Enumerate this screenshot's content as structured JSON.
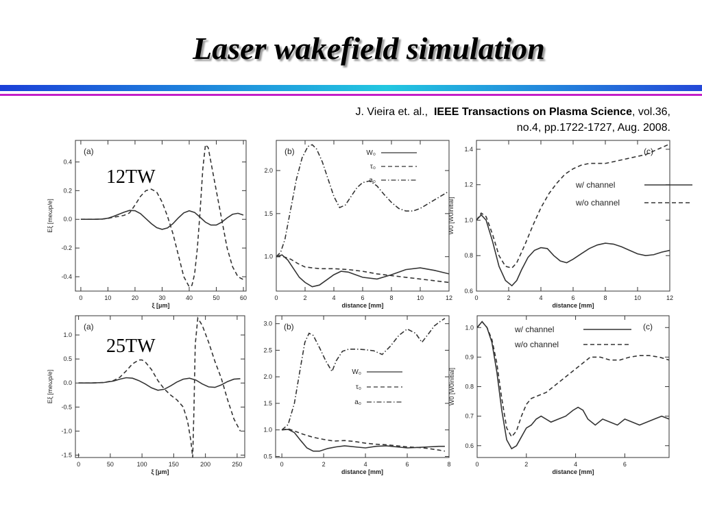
{
  "slide": {
    "title": "Laser wakefield simulation",
    "rule_colors": {
      "band_start": "#1b3fd8",
      "band_mid": "#22c7e0",
      "band_end": "#2448d8",
      "thin": "#c31ec8"
    },
    "citation": {
      "authors": "J. Vieira et. al.,",
      "journal": "IEEE Transactions on Plasma Science",
      "details": ", vol.36, no.4, pp.1722-1727, Aug. 2008."
    }
  },
  "chart_data": [
    {
      "panel": "(a)",
      "type": "line",
      "row_label": "12TW",
      "xlabel": "ξ [μm]",
      "ylabel": "Eξ [meωp/e]",
      "xlim": [
        -2,
        61
      ],
      "ylim": [
        -0.5,
        0.55
      ],
      "xticks": [
        0,
        10,
        20,
        30,
        40,
        50,
        60
      ],
      "yticks": [
        -0.4,
        -0.2,
        0.0,
        0.2,
        0.4
      ],
      "ytick_labels": [
        "-0.4",
        "-0.2",
        "0.0",
        "0.2",
        "0.4"
      ],
      "series": [
        {
          "style": "solid",
          "x": [
            0,
            5,
            8,
            10,
            12,
            14,
            16,
            18,
            20,
            22,
            24,
            26,
            28,
            30,
            32,
            34,
            36,
            38,
            40,
            42,
            44,
            46,
            48,
            50,
            52,
            54,
            56,
            58,
            60
          ],
          "y": [
            0,
            0,
            0.002,
            0.008,
            0.02,
            0.035,
            0.05,
            0.062,
            0.06,
            0.04,
            0.005,
            -0.03,
            -0.058,
            -0.07,
            -0.06,
            -0.03,
            0.01,
            0.045,
            0.06,
            0.048,
            0.015,
            -0.02,
            -0.04,
            -0.04,
            -0.02,
            0.01,
            0.035,
            0.042,
            0.03
          ]
        },
        {
          "style": "dashed",
          "x": [
            0,
            5,
            8,
            10,
            12,
            14,
            16,
            18,
            20,
            22,
            24,
            26,
            28,
            30,
            32,
            34,
            36,
            38,
            40,
            41,
            42,
            43,
            44,
            45,
            46,
            47,
            48,
            50,
            52,
            54,
            56,
            58,
            60
          ],
          "y": [
            0,
            0,
            0.002,
            0.006,
            0.015,
            0.02,
            0.028,
            0.045,
            0.1,
            0.16,
            0.2,
            0.21,
            0.19,
            0.12,
            0.02,
            -0.1,
            -0.25,
            -0.4,
            -0.47,
            -0.46,
            -0.38,
            -0.2,
            0.05,
            0.35,
            0.52,
            0.5,
            0.4,
            0.2,
            0,
            -0.2,
            -0.33,
            -0.4,
            -0.42
          ]
        }
      ]
    },
    {
      "panel": "(b)",
      "type": "line",
      "xlabel": "distance [mm]",
      "xlim": [
        0,
        12
      ],
      "ylim": [
        0.6,
        2.35
      ],
      "xticks": [
        0,
        2,
        4,
        6,
        8,
        10,
        12
      ],
      "yticks": [
        1.0,
        1.5,
        2.0
      ],
      "ytick_labels": [
        "1.0",
        "1.5",
        "2.0"
      ],
      "legend": [
        "W₀",
        "τ₀",
        "a₀"
      ],
      "series": [
        {
          "style": "solid",
          "x": [
            0,
            0.4,
            0.8,
            1.2,
            1.6,
            2,
            2.5,
            3,
            3.5,
            4,
            4.5,
            5,
            6,
            7,
            8,
            9,
            10,
            11,
            12
          ],
          "y": [
            1.0,
            1.02,
            0.96,
            0.86,
            0.76,
            0.7,
            0.65,
            0.67,
            0.73,
            0.79,
            0.83,
            0.82,
            0.76,
            0.74,
            0.79,
            0.85,
            0.87,
            0.84,
            0.8
          ]
        },
        {
          "style": "dashed",
          "x": [
            0,
            0.5,
            1,
            1.5,
            2,
            3,
            4,
            5,
            6,
            7,
            8,
            9,
            10,
            11,
            12
          ],
          "y": [
            1.0,
            1.0,
            0.97,
            0.92,
            0.88,
            0.86,
            0.86,
            0.85,
            0.83,
            0.8,
            0.78,
            0.76,
            0.74,
            0.72,
            0.7
          ]
        },
        {
          "style": "dashdot",
          "x": [
            0,
            0.3,
            0.6,
            1,
            1.4,
            1.8,
            2.2,
            2.5,
            2.8,
            3.2,
            3.6,
            4,
            4.4,
            4.8,
            5.2,
            5.6,
            6,
            6.5,
            7,
            7.5,
            8,
            8.5,
            9,
            9.5,
            10,
            11,
            12
          ],
          "y": [
            1.0,
            1.05,
            1.2,
            1.55,
            1.9,
            2.15,
            2.28,
            2.3,
            2.25,
            2.1,
            1.9,
            1.7,
            1.57,
            1.6,
            1.7,
            1.8,
            1.86,
            1.88,
            1.82,
            1.72,
            1.63,
            1.56,
            1.53,
            1.53,
            1.56,
            1.66,
            1.76
          ]
        }
      ]
    },
    {
      "panel": "(c)",
      "type": "line",
      "xlabel": "distance [mm]",
      "ylabel": "W0 [W0initial]",
      "xlim": [
        0,
        12
      ],
      "ylim": [
        0.6,
        1.45
      ],
      "xticks": [
        0,
        2,
        4,
        6,
        8,
        10,
        12
      ],
      "yticks": [
        0.6,
        0.8,
        1.0,
        1.2,
        1.4
      ],
      "ytick_labels": [
        "0.6",
        "0.8",
        "1.0",
        "1.2",
        "1.4"
      ],
      "legend": [
        "w/ channel",
        "w/o channel"
      ],
      "series": [
        {
          "name": "w/ channel",
          "style": "solid",
          "x": [
            0,
            0.3,
            0.6,
            1,
            1.4,
            1.8,
            2.2,
            2.5,
            2.8,
            3.2,
            3.6,
            4,
            4.4,
            4.8,
            5.2,
            5.6,
            6,
            6.5,
            7,
            7.5,
            8,
            8.5,
            9,
            9.5,
            10,
            10.5,
            11,
            11.5,
            12
          ],
          "y": [
            1.0,
            1.03,
            1.0,
            0.88,
            0.74,
            0.66,
            0.63,
            0.66,
            0.72,
            0.79,
            0.83,
            0.845,
            0.84,
            0.8,
            0.77,
            0.76,
            0.78,
            0.81,
            0.84,
            0.86,
            0.87,
            0.865,
            0.85,
            0.83,
            0.81,
            0.8,
            0.805,
            0.82,
            0.83
          ]
        },
        {
          "name": "w/o channel",
          "style": "dashed",
          "x": [
            0,
            0.3,
            0.6,
            1,
            1.4,
            1.8,
            2.2,
            2.5,
            3,
            3.5,
            4,
            4.5,
            5,
            5.5,
            6,
            6.5,
            7,
            7.5,
            8,
            8.5,
            9,
            9.5,
            10,
            10.5,
            11,
            11.5,
            12
          ],
          "y": [
            1.0,
            1.04,
            1.02,
            0.92,
            0.8,
            0.74,
            0.73,
            0.76,
            0.86,
            0.97,
            1.07,
            1.15,
            1.21,
            1.26,
            1.29,
            1.31,
            1.32,
            1.32,
            1.32,
            1.33,
            1.34,
            1.35,
            1.36,
            1.37,
            1.39,
            1.41,
            1.43
          ]
        }
      ]
    },
    {
      "panel": "(a)",
      "type": "line",
      "row_label": "25TW",
      "xlabel": "ξ [μm]",
      "ylabel": "Eξ [meωp/e]",
      "xlim": [
        -5,
        262
      ],
      "ylim": [
        -1.55,
        1.4
      ],
      "xticks": [
        0,
        50,
        100,
        150,
        200,
        250
      ],
      "yticks": [
        -1.5,
        -1.0,
        -0.5,
        0.0,
        0.5,
        1.0
      ],
      "ytick_labels": [
        "-1.5",
        "-1.0",
        "-0.5",
        "0.0",
        "0.5",
        "1.0"
      ],
      "series": [
        {
          "style": "solid",
          "x": [
            0,
            20,
            40,
            55,
            65,
            75,
            85,
            95,
            105,
            115,
            125,
            135,
            145,
            155,
            165,
            175,
            185,
            195,
            205,
            215,
            225,
            235,
            245,
            255
          ],
          "y": [
            0,
            0,
            0.01,
            0.04,
            0.08,
            0.11,
            0.1,
            0.05,
            -0.02,
            -0.1,
            -0.15,
            -0.13,
            -0.06,
            0.02,
            0.08,
            0.1,
            0.06,
            -0.02,
            -0.08,
            -0.09,
            -0.04,
            0.03,
            0.08,
            0.09
          ]
        },
        {
          "style": "dashed",
          "x": [
            0,
            20,
            40,
            55,
            65,
            75,
            85,
            95,
            100,
            105,
            115,
            125,
            135,
            145,
            155,
            165,
            172,
            177,
            180,
            182,
            184,
            188,
            195,
            205,
            215,
            225,
            235,
            245,
            255
          ],
          "y": [
            0,
            0,
            0.01,
            0.05,
            0.12,
            0.25,
            0.4,
            0.48,
            0.48,
            0.44,
            0.28,
            0.05,
            -0.12,
            -0.25,
            -0.35,
            -0.5,
            -0.8,
            -1.2,
            -1.55,
            -0.5,
            0.8,
            1.35,
            1.2,
            0.85,
            0.45,
            0.1,
            -0.35,
            -0.75,
            -1.0
          ]
        }
      ]
    },
    {
      "panel": "(b)",
      "type": "line",
      "xlabel": "distance [mm]",
      "xlim": [
        -0.3,
        8
      ],
      "ylim": [
        0.48,
        3.15
      ],
      "xticks": [
        0,
        2,
        4,
        6,
        8
      ],
      "yticks": [
        0.5,
        1.0,
        1.5,
        2.0,
        2.5,
        3.0
      ],
      "ytick_labels": [
        "0.5",
        "1.0",
        "1.5",
        "2.0",
        "2.5",
        "3.0"
      ],
      "legend": [
        "W₀",
        "τ₀",
        "a₀"
      ],
      "series": [
        {
          "style": "solid",
          "x": [
            0,
            0.3,
            0.6,
            0.9,
            1.2,
            1.5,
            1.8,
            2.2,
            2.6,
            3,
            3.5,
            4,
            4.5,
            5,
            5.5,
            6,
            6.5,
            7,
            7.5,
            7.8
          ],
          "y": [
            1.0,
            1.01,
            0.95,
            0.8,
            0.66,
            0.6,
            0.6,
            0.65,
            0.68,
            0.7,
            0.68,
            0.66,
            0.69,
            0.7,
            0.68,
            0.66,
            0.67,
            0.68,
            0.69,
            0.69
          ]
        },
        {
          "style": "dashed",
          "x": [
            0,
            0.3,
            0.6,
            1,
            1.5,
            2,
            2.5,
            3,
            3.5,
            4,
            4.5,
            5,
            5.5,
            6,
            6.5,
            7,
            7.5,
            7.8
          ],
          "y": [
            1.0,
            1.02,
            0.98,
            0.92,
            0.86,
            0.82,
            0.79,
            0.8,
            0.78,
            0.75,
            0.73,
            0.72,
            0.7,
            0.68,
            0.67,
            0.65,
            0.62,
            0.6
          ]
        },
        {
          "style": "dashdot",
          "x": [
            0,
            0.3,
            0.6,
            0.9,
            1.1,
            1.3,
            1.5,
            1.8,
            2.1,
            2.4,
            2.6,
            2.9,
            3.2,
            3.6,
            4,
            4.4,
            4.8,
            5.2,
            5.6,
            6,
            6.4,
            6.7,
            7,
            7.3,
            7.6,
            7.8
          ],
          "y": [
            1.0,
            1.1,
            1.5,
            2.2,
            2.65,
            2.82,
            2.78,
            2.55,
            2.3,
            2.1,
            2.3,
            2.48,
            2.52,
            2.52,
            2.51,
            2.49,
            2.42,
            2.58,
            2.78,
            2.9,
            2.82,
            2.65,
            2.8,
            2.96,
            3.05,
            3.1
          ]
        }
      ]
    },
    {
      "panel": "(c)",
      "type": "line",
      "xlabel": "distance [mm]",
      "ylabel": "W0 [W0initial]",
      "xlim": [
        0,
        7.8
      ],
      "ylim": [
        0.56,
        1.04
      ],
      "xticks": [
        0,
        2,
        4,
        6
      ],
      "yticks": [
        0.6,
        0.7,
        0.8,
        0.9,
        1.0
      ],
      "ytick_labels": [
        "0.6",
        "0.7",
        "0.8",
        "0.9",
        "1.0"
      ],
      "legend": [
        "w/ channel",
        "w/o channel"
      ],
      "series": [
        {
          "name": "w/ channel",
          "style": "solid",
          "x": [
            0,
            0.2,
            0.4,
            0.6,
            0.8,
            1,
            1.2,
            1.4,
            1.6,
            1.8,
            2,
            2.2,
            2.4,
            2.6,
            2.8,
            3,
            3.3,
            3.6,
            3.9,
            4.1,
            4.3,
            4.5,
            4.8,
            5.1,
            5.4,
            5.7,
            6,
            6.3,
            6.6,
            6.9,
            7.2,
            7.5,
            7.8
          ],
          "y": [
            1.0,
            1.02,
            1.0,
            0.95,
            0.85,
            0.72,
            0.62,
            0.59,
            0.6,
            0.63,
            0.66,
            0.67,
            0.69,
            0.7,
            0.69,
            0.68,
            0.69,
            0.7,
            0.72,
            0.73,
            0.72,
            0.69,
            0.67,
            0.69,
            0.68,
            0.67,
            0.69,
            0.68,
            0.67,
            0.68,
            0.69,
            0.7,
            0.69
          ]
        },
        {
          "name": "w/o channel",
          "style": "dashed",
          "x": [
            0,
            0.2,
            0.4,
            0.6,
            0.8,
            1,
            1.2,
            1.4,
            1.6,
            1.8,
            2,
            2.2,
            2.5,
            2.8,
            3.1,
            3.4,
            3.7,
            4,
            4.3,
            4.6,
            5,
            5.4,
            5.8,
            6.2,
            6.6,
            7,
            7.4,
            7.8
          ],
          "y": [
            1.0,
            1.02,
            1.0,
            0.96,
            0.88,
            0.76,
            0.66,
            0.63,
            0.65,
            0.7,
            0.74,
            0.76,
            0.77,
            0.78,
            0.8,
            0.82,
            0.84,
            0.86,
            0.88,
            0.9,
            0.9,
            0.89,
            0.89,
            0.9,
            0.905,
            0.905,
            0.9,
            0.89
          ]
        }
      ]
    }
  ]
}
